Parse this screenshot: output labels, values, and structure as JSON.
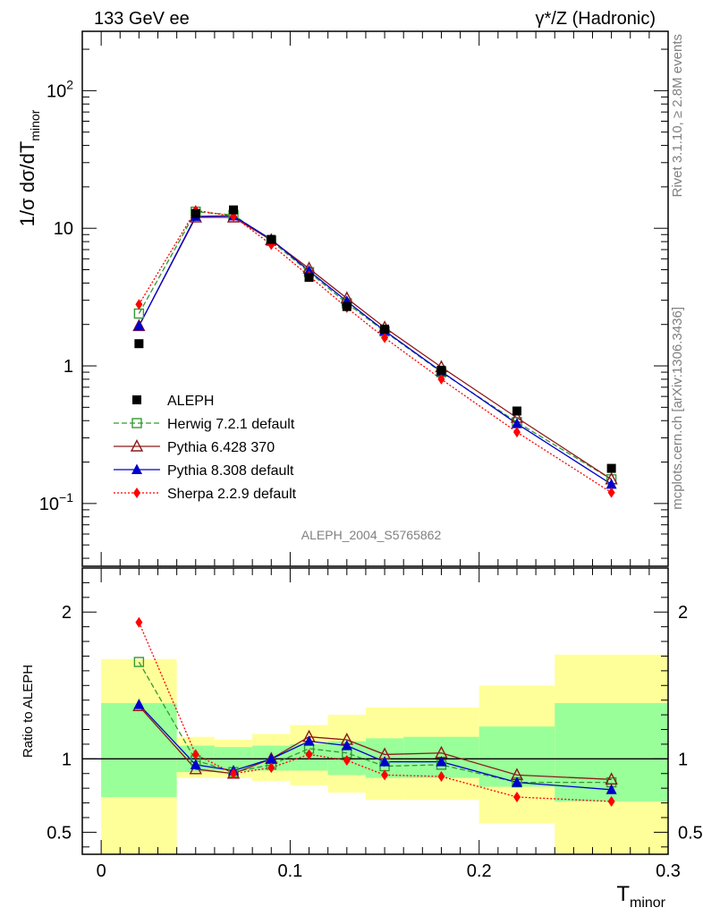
{
  "header": {
    "left_label": "133 GeV ee",
    "right_label": "γ*/Z (Hadronic)",
    "side_label_top": "Rivet 3.1.10, ≥ 2.8M events",
    "side_label_bottom": "mcplots.cern.ch [arXiv:1306.3436]",
    "analysis_id": "ALEPH_2004_S5765862"
  },
  "colors": {
    "data": "#000000",
    "herwig": "#339933",
    "pythia6": "#8b1a1a",
    "pythia8": "#0000cc",
    "sherpa": "#ff0000",
    "band_inner": "#99ff99",
    "band_outer": "#ffff99"
  },
  "chart_data": [
    {
      "type": "scatter",
      "panel": "main",
      "ylabel_main": "1/σ  dσ/dT",
      "ylabel_sub": "minor",
      "yscale": "log",
      "ylim": [
        0.035,
        270
      ],
      "xlim": [
        -0.01,
        0.3
      ],
      "yticks": [
        {
          "value": 0.1,
          "base": "10",
          "exp": "−1"
        },
        {
          "value": 1,
          "base": "1",
          "exp": ""
        },
        {
          "value": 10,
          "base": "10",
          "exp": ""
        },
        {
          "value": 100,
          "base": "10",
          "exp": "2"
        }
      ],
      "legend_position": "lower-left",
      "x": [
        0.02,
        0.05,
        0.07,
        0.09,
        0.11,
        0.13,
        0.15,
        0.18,
        0.22,
        0.27
      ],
      "series": [
        {
          "name": "ALEPH",
          "key": "data",
          "marker": "square",
          "line": "none",
          "values": [
            1.45,
            12.8,
            13.6,
            8.3,
            4.4,
            2.7,
            1.85,
            0.93,
            0.47,
            0.18
          ]
        },
        {
          "name": "Herwig 7.2.1 default",
          "key": "herwig",
          "marker": "open-square",
          "line": "dashed",
          "values": [
            2.4,
            13.2,
            12.5,
            8.1,
            4.8,
            2.85,
            1.78,
            0.9,
            0.39,
            0.15
          ]
        },
        {
          "name": "Pythia 6.428 370",
          "key": "pythia6",
          "marker": "open-triangle",
          "line": "solid",
          "values": [
            1.95,
            12.0,
            12.0,
            8.2,
            5.1,
            3.1,
            1.9,
            0.98,
            0.42,
            0.15
          ]
        },
        {
          "name": "Pythia 8.308 default",
          "key": "pythia8",
          "marker": "triangle",
          "line": "solid",
          "values": [
            1.95,
            12.2,
            12.3,
            8.3,
            4.9,
            2.95,
            1.8,
            0.91,
            0.38,
            0.138
          ]
        },
        {
          "name": "Sherpa 2.2.9 default",
          "key": "sherpa",
          "marker": "diamond",
          "line": "dotted",
          "values": [
            2.8,
            13.5,
            12.2,
            7.6,
            4.5,
            2.65,
            1.6,
            0.8,
            0.33,
            0.12
          ]
        }
      ]
    },
    {
      "type": "line",
      "panel": "ratio",
      "ylabel": "Ratio to ALEPH",
      "xlabel_main": "T",
      "xlabel_sub": "minor",
      "ylim": [
        0.35,
        2.3
      ],
      "xlim": [
        -0.01,
        0.3
      ],
      "xticks": [
        {
          "value": 0,
          "label": "0"
        },
        {
          "value": 0.1,
          "label": "0.1"
        },
        {
          "value": 0.2,
          "label": "0.2"
        },
        {
          "value": 0.3,
          "label": "0.3"
        }
      ],
      "yticks": [
        {
          "value": 0.5,
          "label": "0.5"
        },
        {
          "value": 1,
          "label": "1"
        },
        {
          "value": 2,
          "label": "2"
        }
      ],
      "x": [
        0.02,
        0.05,
        0.07,
        0.09,
        0.11,
        0.13,
        0.15,
        0.18,
        0.22,
        0.27
      ],
      "bands": [
        {
          "xlo": 0.0,
          "xhi": 0.04,
          "inner": [
            0.74,
            1.38
          ],
          "outer": [
            0.35,
            1.68
          ]
        },
        {
          "xlo": 0.04,
          "xhi": 0.06,
          "inner": [
            0.91,
            1.09
          ],
          "outer": [
            0.87,
            1.15
          ]
        },
        {
          "xlo": 0.06,
          "xhi": 0.08,
          "inner": [
            0.92,
            1.08
          ],
          "outer": [
            0.87,
            1.13
          ]
        },
        {
          "xlo": 0.08,
          "xhi": 0.1,
          "inner": [
            0.92,
            1.09
          ],
          "outer": [
            0.85,
            1.17
          ]
        },
        {
          "xlo": 0.1,
          "xhi": 0.12,
          "inner": [
            0.92,
            1.1
          ],
          "outer": [
            0.82,
            1.23
          ]
        },
        {
          "xlo": 0.12,
          "xhi": 0.14,
          "inner": [
            0.89,
            1.12
          ],
          "outer": [
            0.77,
            1.3
          ]
        },
        {
          "xlo": 0.14,
          "xhi": 0.16,
          "inner": [
            0.87,
            1.14
          ],
          "outer": [
            0.72,
            1.35
          ]
        },
        {
          "xlo": 0.16,
          "xhi": 0.2,
          "inner": [
            0.87,
            1.15
          ],
          "outer": [
            0.72,
            1.35
          ]
        },
        {
          "xlo": 0.2,
          "xhi": 0.24,
          "inner": [
            0.81,
            1.22
          ],
          "outer": [
            0.56,
            1.5
          ]
        },
        {
          "xlo": 0.24,
          "xhi": 0.3,
          "inner": [
            0.71,
            1.38
          ],
          "outer": [
            0.35,
            1.71
          ]
        }
      ],
      "series": [
        {
          "name": "Herwig 7.2.1 default",
          "key": "herwig",
          "marker": "open-square",
          "line": "dashed",
          "values": [
            1.66,
            0.99,
            0.91,
            0.96,
            1.07,
            1.04,
            0.95,
            0.96,
            0.84,
            0.84
          ]
        },
        {
          "name": "Pythia 6.428 370",
          "key": "pythia6",
          "marker": "open-triangle",
          "line": "solid",
          "values": [
            1.36,
            0.93,
            0.9,
            1.0,
            1.15,
            1.13,
            1.03,
            1.04,
            0.89,
            0.86
          ]
        },
        {
          "name": "Pythia 8.308 default",
          "key": "pythia8",
          "marker": "triangle",
          "line": "solid",
          "values": [
            1.37,
            0.96,
            0.92,
            1.0,
            1.12,
            1.09,
            0.98,
            0.98,
            0.84,
            0.79
          ]
        },
        {
          "name": "Sherpa 2.2.9 default",
          "key": "sherpa",
          "marker": "diamond",
          "line": "dotted",
          "values": [
            1.93,
            1.03,
            0.9,
            0.94,
            1.03,
            0.99,
            0.89,
            0.88,
            0.74,
            0.71
          ]
        }
      ]
    }
  ]
}
